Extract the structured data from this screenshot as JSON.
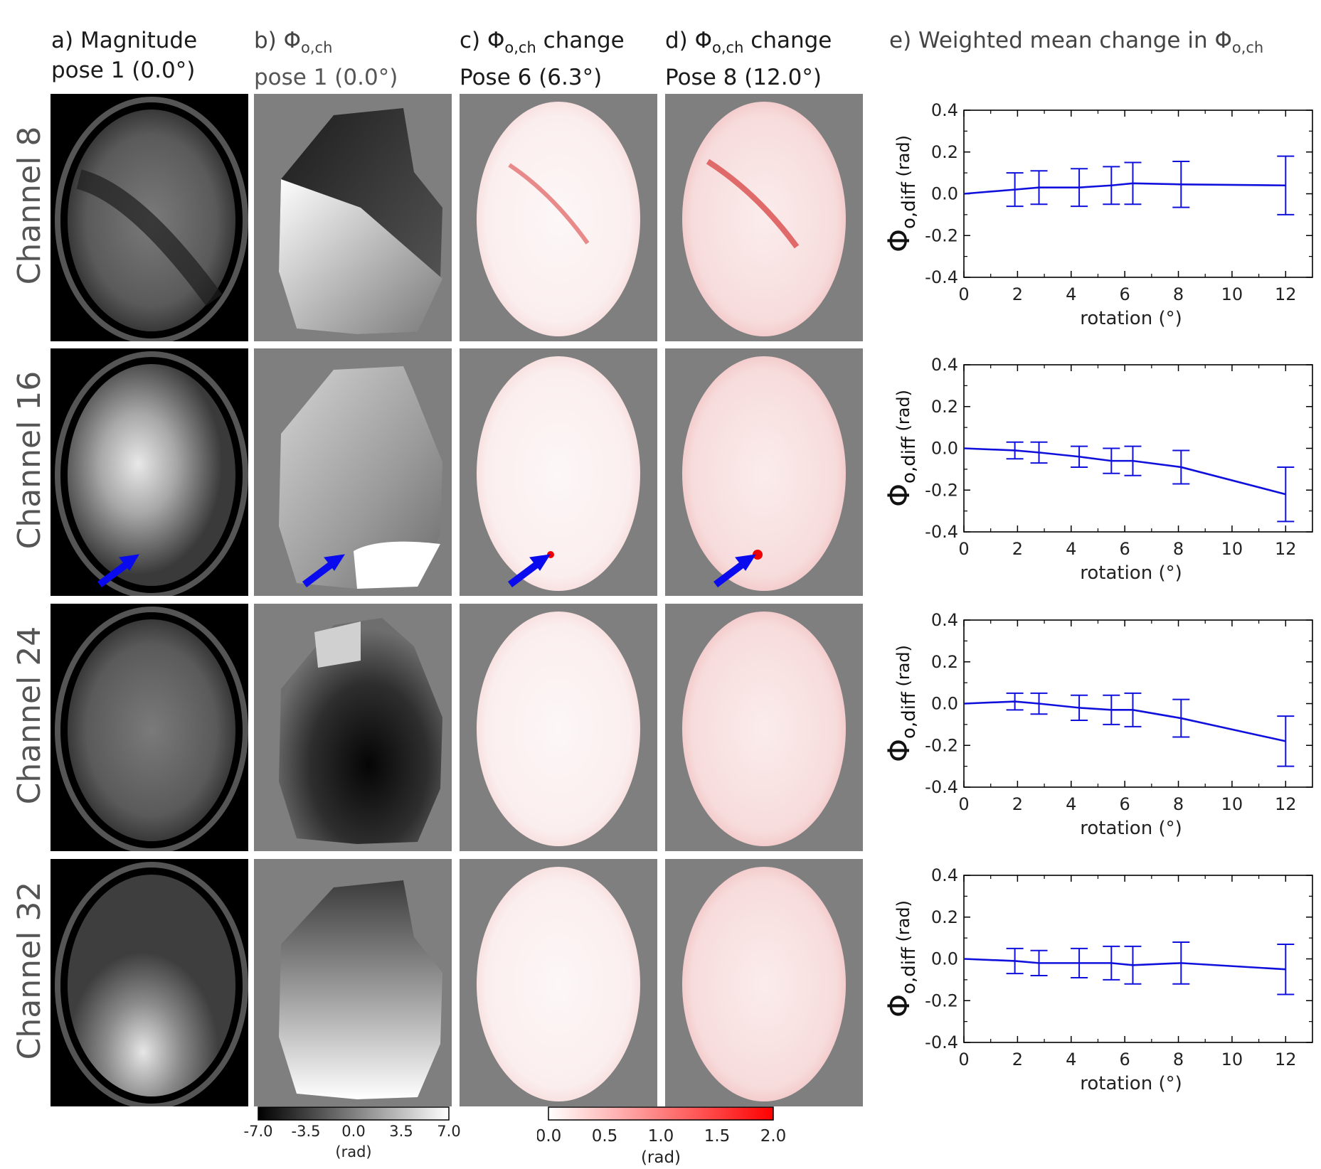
{
  "headers": {
    "a": {
      "line1": "a) Magnitude",
      "line2": "pose 1 (0.0°)"
    },
    "b": {
      "line1_prefix": "b) Φ",
      "line1_sub": "o,ch",
      "line2": "pose 1 (0.0°)"
    },
    "c": {
      "line1_prefix": "c) Φ",
      "line1_sub": "o,ch",
      "line1_suffix": " change",
      "line2": "Pose 6 (6.3°)"
    },
    "d": {
      "line1_prefix": "d) Φ",
      "line1_sub": "o,ch",
      "line1_suffix": " change",
      "line2": "Pose 8 (12.0°)"
    },
    "e": {
      "line1_prefix": "e) Weighted mean change in Φ",
      "line1_sub": "o,ch"
    }
  },
  "rows": [
    "Channel 8",
    "Channel 16",
    "Channel 24",
    "Channel 32"
  ],
  "colorbar_phase": {
    "ticks": [
      "-7.0",
      "-3.5",
      "0.0",
      "3.5",
      "7.0"
    ],
    "unit": "(rad)",
    "min_color": "#000000",
    "max_color": "#ffffff"
  },
  "colorbar_change": {
    "ticks": [
      "0.0",
      "0.5",
      "1.0",
      "1.5",
      "2.0"
    ],
    "unit": "(rad)",
    "min_color": "#ffffff",
    "max_color": "#ff0000"
  },
  "colors": {
    "line": "#1010dd",
    "arrow": "#0a0aee",
    "background_tile": "#7f7f7f"
  },
  "chart_data": [
    {
      "type": "line",
      "title": "Channel 8",
      "xlabel": "rotation (°)",
      "ylabel_main": "Φ",
      "ylabel_sub": "o,diff",
      "ylabel_unit": " (rad)",
      "xlim": [
        0,
        13
      ],
      "ylim": [
        -0.4,
        0.4
      ],
      "xticks": [
        0,
        2,
        4,
        6,
        8,
        10,
        12
      ],
      "yticks": [
        -0.4,
        -0.2,
        0.0,
        0.2,
        0.4
      ],
      "ytick_labels": [
        "-0.4",
        "-0.2",
        "0.0",
        "0.2",
        "0.4"
      ],
      "x": [
        0,
        1.9,
        2.8,
        4.3,
        5.5,
        6.3,
        8.1,
        12.0
      ],
      "y": [
        0.0,
        0.02,
        0.03,
        0.03,
        0.04,
        0.05,
        0.045,
        0.04
      ],
      "err": [
        0.0,
        0.08,
        0.08,
        0.09,
        0.09,
        0.1,
        0.11,
        0.14
      ]
    },
    {
      "type": "line",
      "title": "Channel 16",
      "xlabel": "rotation (°)",
      "ylabel_main": "Φ",
      "ylabel_sub": "o,diff",
      "ylabel_unit": " (rad)",
      "xlim": [
        0,
        13
      ],
      "ylim": [
        -0.4,
        0.4
      ],
      "xticks": [
        0,
        2,
        4,
        6,
        8,
        10,
        12
      ],
      "yticks": [
        -0.4,
        -0.2,
        0.0,
        0.2,
        0.4
      ],
      "ytick_labels": [
        "-0.4",
        "-0.2",
        "0.0",
        "0.2",
        "0.4"
      ],
      "x": [
        0,
        1.9,
        2.8,
        4.3,
        5.5,
        6.3,
        8.1,
        12.0
      ],
      "y": [
        0.0,
        -0.01,
        -0.02,
        -0.04,
        -0.06,
        -0.06,
        -0.09,
        -0.22
      ],
      "err": [
        0.0,
        0.04,
        0.05,
        0.05,
        0.06,
        0.07,
        0.08,
        0.13
      ]
    },
    {
      "type": "line",
      "title": "Channel 24",
      "xlabel": "rotation (°)",
      "ylabel_main": "Φ",
      "ylabel_sub": "o,diff",
      "ylabel_unit": " (rad)",
      "xlim": [
        0,
        13
      ],
      "ylim": [
        -0.4,
        0.4
      ],
      "xticks": [
        0,
        2,
        4,
        6,
        8,
        10,
        12
      ],
      "yticks": [
        -0.4,
        -0.2,
        0.0,
        0.2,
        0.4
      ],
      "ytick_labels": [
        "-0.4",
        "-0.2",
        "0.0",
        "0.2",
        "0.4"
      ],
      "x": [
        0,
        1.9,
        2.8,
        4.3,
        5.5,
        6.3,
        8.1,
        12.0
      ],
      "y": [
        0.0,
        0.01,
        0.0,
        -0.02,
        -0.03,
        -0.03,
        -0.07,
        -0.18
      ],
      "err": [
        0.0,
        0.04,
        0.05,
        0.06,
        0.07,
        0.08,
        0.09,
        0.12
      ]
    },
    {
      "type": "line",
      "title": "Channel 32",
      "xlabel": "rotation (°)",
      "ylabel_main": "Φ",
      "ylabel_sub": "o,diff",
      "ylabel_unit": " (rad)",
      "xlim": [
        0,
        13
      ],
      "ylim": [
        -0.4,
        0.4
      ],
      "xticks": [
        0,
        2,
        4,
        6,
        8,
        10,
        12
      ],
      "yticks": [
        -0.4,
        -0.2,
        0.0,
        0.2,
        0.4
      ],
      "ytick_labels": [
        "-0.4",
        "-0.2",
        "0.0",
        "0.2",
        "0.4"
      ],
      "x": [
        0,
        1.9,
        2.8,
        4.3,
        5.5,
        6.3,
        8.1,
        12.0
      ],
      "y": [
        0.0,
        -0.01,
        -0.02,
        -0.02,
        -0.02,
        -0.03,
        -0.02,
        -0.05
      ],
      "err": [
        0.0,
        0.06,
        0.06,
        0.07,
        0.08,
        0.09,
        0.1,
        0.12
      ]
    }
  ]
}
